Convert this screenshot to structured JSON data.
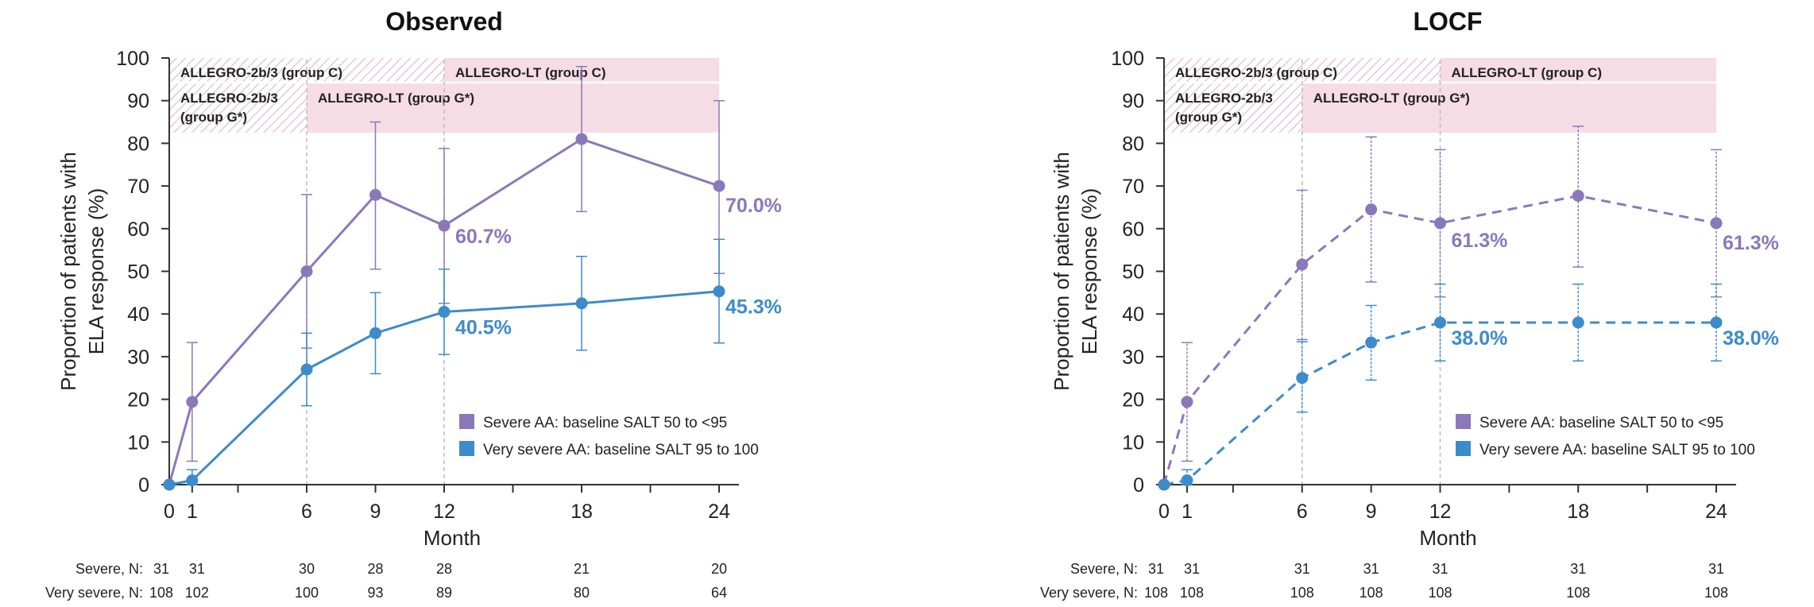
{
  "colors": {
    "severe": "#8B78BA",
    "very_severe": "#3D8BCB",
    "band": "#F6DCE4",
    "hatch": "#E9CCD4"
  },
  "chart_data": [
    {
      "type": "line",
      "title": "Observed",
      "xlabel": "Month",
      "ylabel": "Proportion of patients with ELA response (%)",
      "ylabel_lines": [
        "Proportion of patients with",
        "ELA response (%)"
      ],
      "line_style": "solid",
      "x": [
        0,
        1,
        6,
        9,
        12,
        18,
        24
      ],
      "x_ticks": [
        0,
        1,
        6,
        9,
        12,
        18,
        24
      ],
      "xlim": [
        0,
        24
      ],
      "ylim": [
        0,
        100
      ],
      "y_ticks": [
        0,
        10,
        20,
        30,
        40,
        50,
        60,
        70,
        80,
        90,
        100
      ],
      "grid": false,
      "legend_position": "lower-right",
      "bands": [
        {
          "label_lines": [
            "ALLEGRO-2b/3 (group C)"
          ],
          "x_start": 0,
          "x_end": 12,
          "y_from": 94.5,
          "y_to": 100,
          "hatched": true
        },
        {
          "label_lines": [
            "ALLEGRO-LT (group C)"
          ],
          "x_start": 12,
          "x_end": 24,
          "y_from": 94.5,
          "y_to": 100,
          "hatched": false
        },
        {
          "label_lines": [
            "ALLEGRO-2b/3",
            "(group G*)"
          ],
          "x_start": 0,
          "x_end": 6,
          "y_from": 82.5,
          "y_to": 94,
          "hatched": true
        },
        {
          "label_lines": [
            "ALLEGRO-LT (group G*)"
          ],
          "x_start": 6,
          "x_end": 24,
          "y_from": 82.5,
          "y_to": 94,
          "hatched": false
        }
      ],
      "series": [
        {
          "name": "Severe AA: baseline SALT 50 to <95",
          "key": "severe",
          "values": [
            0,
            19.4,
            50.0,
            67.9,
            60.7,
            81.0,
            70.0
          ],
          "err_low": [
            0,
            5.5,
            32.0,
            50.5,
            42.5,
            64.0,
            49.5
          ],
          "err_high": [
            0,
            33.3,
            68.0,
            85.0,
            78.8,
            98.0,
            90.0
          ],
          "end_label": "70.0%",
          "mid_label": "60.7%"
        },
        {
          "name": "Very severe AA: baseline SALT 95 to 100",
          "key": "very_severe",
          "values": [
            0,
            1.0,
            27.0,
            35.5,
            40.5,
            42.5,
            45.3
          ],
          "err_low": [
            0,
            0,
            18.5,
            26.0,
            30.5,
            31.5,
            33.2
          ],
          "err_high": [
            0,
            3.5,
            35.5,
            45.0,
            50.5,
            53.5,
            57.5
          ],
          "end_label": "45.3%",
          "mid_label": "40.5%"
        }
      ],
      "n_at_risk": {
        "x": [
          0,
          1,
          6,
          9,
          12,
          18,
          24
        ],
        "rows": [
          {
            "label": "Severe, N:",
            "values": [
              "31",
              "31",
              "30",
              "28",
              "28",
              "21",
              "20"
            ]
          },
          {
            "label": "Very severe, N:",
            "values": [
              "108",
              "102",
              "100",
              "93",
              "89",
              "80",
              "64"
            ]
          }
        ]
      }
    },
    {
      "type": "line",
      "title": "LOCF",
      "xlabel": "Month",
      "ylabel": "Proportion of patients with ELA response (%)",
      "ylabel_lines": [
        "Proportion of patients with",
        "ELA response (%)"
      ],
      "line_style": "dashed",
      "x": [
        0,
        1,
        6,
        9,
        12,
        18,
        24
      ],
      "x_ticks": [
        0,
        1,
        6,
        9,
        12,
        18,
        24
      ],
      "xlim": [
        0,
        24
      ],
      "ylim": [
        0,
        100
      ],
      "y_ticks": [
        0,
        10,
        20,
        30,
        40,
        50,
        60,
        70,
        80,
        90,
        100
      ],
      "grid": false,
      "legend_position": "lower-right",
      "bands": [
        {
          "label_lines": [
            "ALLEGRO-2b/3 (group C)"
          ],
          "x_start": 0,
          "x_end": 12,
          "y_from": 94.5,
          "y_to": 100,
          "hatched": true
        },
        {
          "label_lines": [
            "ALLEGRO-LT (group C)"
          ],
          "x_start": 12,
          "x_end": 24,
          "y_from": 94.5,
          "y_to": 100,
          "hatched": false
        },
        {
          "label_lines": [
            "ALLEGRO-2b/3",
            "(group G*)"
          ],
          "x_start": 0,
          "x_end": 6,
          "y_from": 82.5,
          "y_to": 94,
          "hatched": true
        },
        {
          "label_lines": [
            "ALLEGRO-LT (group G*)"
          ],
          "x_start": 6,
          "x_end": 24,
          "y_from": 82.5,
          "y_to": 94,
          "hatched": false
        }
      ],
      "series": [
        {
          "name": "Severe AA: baseline SALT 50 to <95",
          "key": "severe",
          "values": [
            0,
            19.4,
            51.6,
            64.5,
            61.3,
            67.7,
            61.3
          ],
          "err_low": [
            0,
            5.5,
            34.0,
            47.5,
            44.0,
            51.0,
            44.0
          ],
          "err_high": [
            0,
            33.3,
            69.0,
            81.5,
            78.5,
            84.0,
            78.5
          ],
          "end_label": "61.3%",
          "mid_label": "61.3%"
        },
        {
          "name": "Very severe AA: baseline SALT 95 to 100",
          "key": "very_severe",
          "values": [
            0,
            1.0,
            25.0,
            33.3,
            38.0,
            38.0,
            38.0
          ],
          "err_low": [
            0,
            0,
            17.0,
            24.5,
            29.0,
            29.0,
            29.0
          ],
          "err_high": [
            0,
            3.5,
            33.5,
            42.0,
            47.0,
            47.0,
            47.0
          ],
          "end_label": "38.0%",
          "mid_label": "38.0%"
        }
      ],
      "n_at_risk": {
        "x": [
          0,
          1,
          6,
          9,
          12,
          18,
          24
        ],
        "rows": [
          {
            "label": "Severe, N:",
            "values": [
              "31",
              "31",
              "31",
              "31",
              "31",
              "31",
              "31"
            ]
          },
          {
            "label": "Very severe, N:",
            "values": [
              "108",
              "108",
              "108",
              "108",
              "108",
              "108",
              "108"
            ]
          }
        ]
      }
    }
  ]
}
